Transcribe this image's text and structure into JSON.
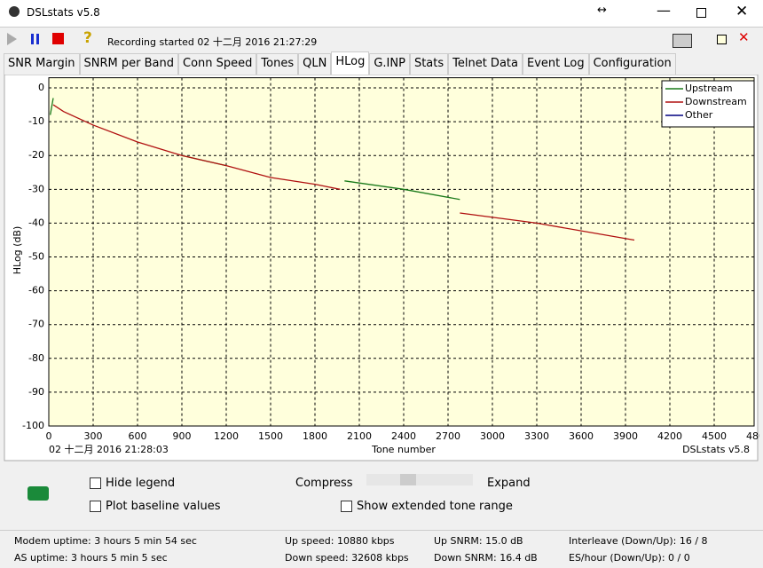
{
  "window": {
    "title": "DSLstats v5.8"
  },
  "toolbar": {
    "status": "Recording started 02 十二月 2016 21:27:29"
  },
  "tabs": [
    "SNR Margin",
    "SNRM per Band",
    "Conn Speed",
    "Tones",
    "QLN",
    "HLog",
    "G.INP",
    "Stats",
    "Telnet Data",
    "Event Log",
    "Configuration"
  ],
  "selected_tab": "HLog",
  "chart_data": {
    "type": "line",
    "ylabel": "HLog (dB)",
    "xlabel": "Tone number",
    "timestamp": "02 十二月 2016 21:28:03",
    "watermark": "DSLstats v5.8",
    "x": [
      10,
      30,
      100,
      300,
      600,
      900,
      1200,
      1500,
      1800,
      1970,
      2000,
      2400,
      2780,
      3300,
      3960
    ],
    "series": [
      {
        "name": "Upstream",
        "color": "#1a7a1a",
        "values": [
          -8,
          -3,
          null,
          null,
          null,
          -20,
          -23,
          null,
          null,
          null,
          -27.5,
          -30,
          -33,
          null,
          null
        ]
      },
      {
        "name": "Downstream",
        "color": "#b01010",
        "values": [
          null,
          -5,
          -7,
          -11,
          -16,
          -20,
          -23,
          -26.5,
          -28.5,
          -30,
          null,
          null,
          -37,
          -40,
          -45
        ]
      },
      {
        "name": "Other",
        "color": "#000080",
        "values": [
          null,
          null,
          null,
          null,
          null,
          null,
          null,
          null,
          null,
          null,
          null,
          null,
          null,
          null,
          null
        ]
      }
    ],
    "xlim": [
      0,
      4800
    ],
    "xticks": [
      0,
      300,
      600,
      900,
      1200,
      1500,
      1800,
      2100,
      2400,
      2700,
      3000,
      3300,
      3600,
      3900,
      4200,
      4500,
      4800
    ],
    "ylim": [
      -100,
      3
    ],
    "yticks": [
      0,
      -10,
      -20,
      -30,
      -40,
      -50,
      -60,
      -70,
      -80,
      -90,
      -100
    ],
    "grid": true,
    "legend": "top-right"
  },
  "controls": {
    "hide_legend": "Hide legend",
    "plot_baseline": "Plot baseline values",
    "compress": "Compress",
    "expand": "Expand",
    "extended_range": "Show extended tone range"
  },
  "status": {
    "modem_uptime": "Modem uptime:  3 hours 5 min 54 sec",
    "as_uptime": "AS uptime:  3 hours 5 min 5 sec",
    "up_speed": "Up speed: 10880 kbps",
    "down_speed": "Down speed: 32608 kbps",
    "up_snrm": "Up SNRM: 15.0 dB",
    "down_snrm": "Down SNRM: 16.4 dB",
    "interleave": "Interleave (Down/Up): 16 / 8",
    "es_hour": "ES/hour (Down/Up): 0 / 0"
  }
}
